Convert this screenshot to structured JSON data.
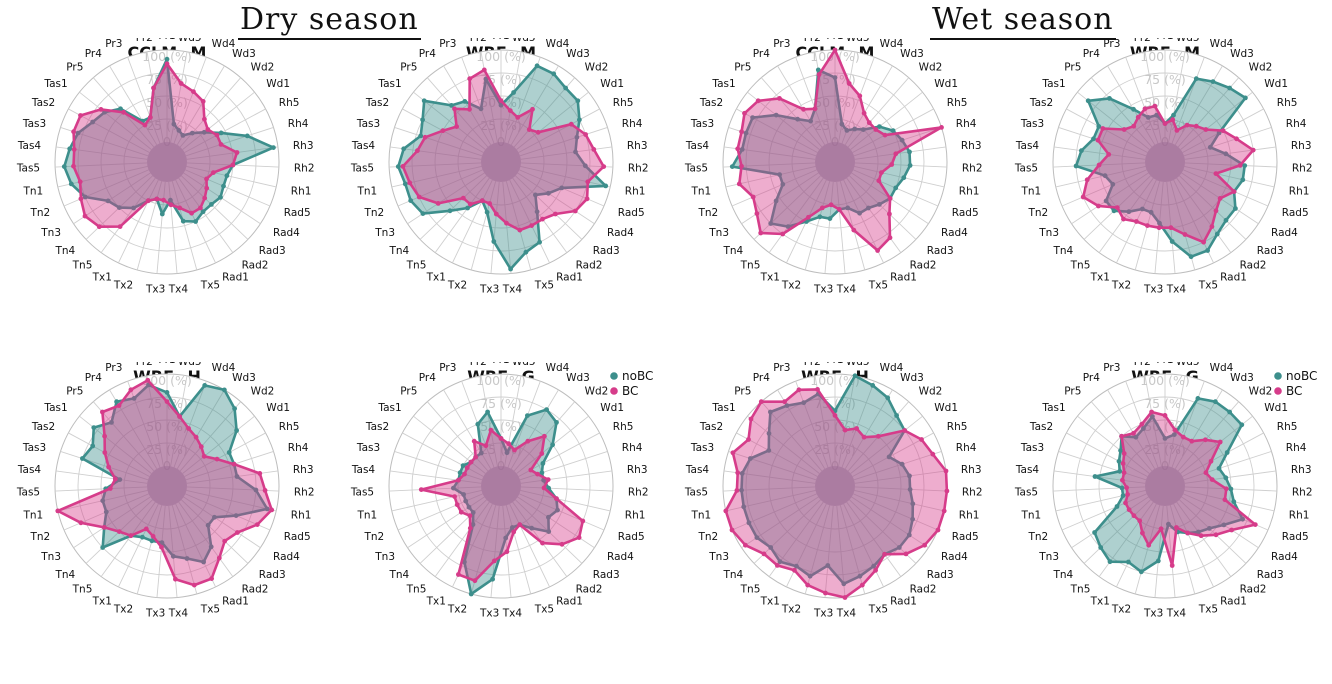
{
  "seasons": {
    "dry": "Dry season",
    "wet": "Wet season"
  },
  "colors": {
    "noBC": "#3d8f8c",
    "BC": "#d63c8a"
  },
  "chart_data": [
    {
      "type": "radar",
      "season": "Dry season",
      "title": "CCLM−M",
      "axes": [
        "Pr1",
        "Wd5",
        "Wd4",
        "Wd3",
        "Wd2",
        "Wd1",
        "Rh5",
        "Rh4",
        "Rh3",
        "Rh2",
        "Rh1",
        "Rad5",
        "Rad4",
        "Rad3",
        "Rad2",
        "Rad1",
        "Tx5",
        "Tx4",
        "Tx3",
        "Tx2",
        "Tx1",
        "Tn5",
        "Tn4",
        "Tn3",
        "Tn2",
        "Tn1",
        "Tas5",
        "Tas4",
        "Tas3",
        "Tas2",
        "Tas1",
        "Pr5",
        "Pr4",
        "Pr3",
        "Pr2"
      ],
      "radial_ticks": [
        "100 (%)",
        "75 (%)",
        "50 (%)",
        "25 (%)",
        "0"
      ],
      "rlim": [
        0,
        100
      ],
      "grid": true,
      "legend": [],
      "series": [
        {
          "key": "noBC",
          "values": [
            90,
            20,
            15,
            12,
            20,
            30,
            45,
            70,
            95,
            50,
            45,
            45,
            48,
            45,
            45,
            50,
            45,
            20,
            35,
            20,
            25,
            40,
            50,
            55,
            75,
            85,
            90,
            85,
            80,
            70,
            65,
            55,
            30,
            30,
            60
          ]
        },
        {
          "key": "BC",
          "values": [
            85,
            65,
            60,
            55,
            40,
            35,
            40,
            40,
            55,
            50,
            30,
            25,
            30,
            35,
            40,
            40,
            30,
            25,
            20,
            20,
            25,
            65,
            80,
            85,
            80,
            75,
            80,
            80,
            85,
            85,
            70,
            50,
            25,
            30,
            60
          ]
        }
      ]
    },
    {
      "type": "radar",
      "season": "Dry season",
      "title": "WRF−M",
      "axes": [
        "Pr1",
        "Wd5",
        "Wd4",
        "Wd3",
        "Wd2",
        "Wd1",
        "Rh5",
        "Rh4",
        "Rh3",
        "Rh2",
        "Rh1",
        "Rad5",
        "Rad4",
        "Rad3",
        "Rad2",
        "Rad1",
        "Tx5",
        "Tx4",
        "Tx3",
        "Tx2",
        "Tx1",
        "Tn5",
        "Tn4",
        "Tn3",
        "Tn2",
        "Tn1",
        "Tas5",
        "Tas4",
        "Tas3",
        "Tas2",
        "Tas1",
        "Pr5",
        "Pr4",
        "Pr3",
        "Pr2"
      ],
      "radial_ticks": [
        "100 (%)",
        "75 (%)",
        "50 (%)",
        "25 (%)",
        "0"
      ],
      "rlim": [
        0,
        100
      ],
      "grid": true,
      "legend": [],
      "series": [
        {
          "key": "noBC",
          "values": [
            40,
            55,
            90,
            90,
            85,
            85,
            75,
            65,
            60,
            70,
            95,
            50,
            40,
            30,
            45,
            75,
            80,
            95,
            65,
            35,
            25,
            40,
            55,
            80,
            85,
            85,
            90,
            85,
            70,
            75,
            85,
            60,
            55,
            40,
            70
          ]
        },
        {
          "key": "BC",
          "values": [
            45,
            35,
            30,
            45,
            25,
            30,
            65,
            75,
            80,
            90,
            75,
            80,
            75,
            60,
            55,
            55,
            55,
            45,
            35,
            25,
            25,
            35,
            35,
            60,
            75,
            80,
            85,
            70,
            65,
            50,
            40,
            55,
            45,
            75,
            80
          ]
        }
      ]
    },
    {
      "type": "radar",
      "season": "Wet season",
      "title": "CCLM−M",
      "axes": [
        "Pr1",
        "Wd5",
        "Wd4",
        "Wd3",
        "Wd2",
        "Wd1",
        "Rh5",
        "Rh4",
        "Rh3",
        "Rh2",
        "Rh1",
        "Rad5",
        "Rad4",
        "Rad3",
        "Rad2",
        "Rad1",
        "Tx5",
        "Tx4",
        "Tx3",
        "Tx2",
        "Tx1",
        "Tn5",
        "Tn4",
        "Tn3",
        "Tn2",
        "Tn1",
        "Tas5",
        "Tas4",
        "Tas3",
        "Tas2",
        "Tas1",
        "Pr5",
        "Pr4",
        "Pr3",
        "Pr2"
      ],
      "radial_ticks": [
        "100 (%)",
        "75 (%)",
        "50 (%)",
        "25 (%)",
        "0"
      ],
      "rlim": [
        0,
        100
      ],
      "grid": true,
      "legend": [],
      "series": [
        {
          "key": "noBC",
          "values": [
            70,
            20,
            15,
            20,
            25,
            40,
            50,
            55,
            60,
            60,
            55,
            50,
            50,
            45,
            40,
            40,
            30,
            30,
            40,
            40,
            50,
            65,
            75,
            55,
            40,
            40,
            90,
            80,
            80,
            80,
            60,
            40,
            30,
            40,
            80
          ]
        },
        {
          "key": "BC",
          "values": [
            100,
            65,
            55,
            40,
            35,
            35,
            40,
            100,
            45,
            40,
            30,
            30,
            50,
            60,
            80,
            85,
            55,
            30,
            25,
            30,
            45,
            75,
            90,
            80,
            75,
            85,
            80,
            85,
            85,
            90,
            85,
            70,
            45,
            40,
            75
          ]
        }
      ]
    },
    {
      "type": "radar",
      "season": "Wet season",
      "title": "WRF−M",
      "axes": [
        "Pr1",
        "Wd5",
        "Wd4",
        "Wd3",
        "Wd2",
        "Wd1",
        "Rh5",
        "Rh4",
        "Rh3",
        "Rh2",
        "Rh1",
        "Rad5",
        "Rad4",
        "Rad3",
        "Rad2",
        "Rad1",
        "Tx5",
        "Tx4",
        "Tx3",
        "Tx2",
        "Tx1",
        "Tn5",
        "Tn4",
        "Tn3",
        "Tn2",
        "Tn1",
        "Tas5",
        "Tas4",
        "Tas3",
        "Tas2",
        "Tas1",
        "Pr5",
        "Pr4",
        "Pr3",
        "Pr2"
      ],
      "radial_ticks": [
        "100 (%)",
        "75 (%)",
        "50 (%)",
        "25 (%)",
        "0"
      ],
      "rlim": [
        0,
        100
      ],
      "grid": true,
      "legend": [],
      "series": [
        {
          "key": "noBC",
          "values": [
            20,
            30,
            75,
            80,
            85,
            90,
            45,
            30,
            45,
            65,
            65,
            60,
            70,
            70,
            75,
            85,
            85,
            65,
            45,
            35,
            35,
            45,
            55,
            55,
            40,
            45,
            75,
            70,
            60,
            60,
            85,
            70,
            45,
            30,
            30
          ]
        },
        {
          "key": "BC",
          "values": [
            20,
            25,
            15,
            25,
            30,
            35,
            50,
            60,
            75,
            60,
            35,
            60,
            50,
            55,
            65,
            75,
            60,
            50,
            50,
            50,
            50,
            55,
            50,
            65,
            75,
            65,
            50,
            40,
            55,
            55,
            35,
            30,
            35,
            40,
            40
          ]
        }
      ]
    },
    {
      "type": "radar",
      "season": "Dry season",
      "title": "WRF−H",
      "axes": [
        "Pr1",
        "Wd5",
        "Wd4",
        "Wd3",
        "Wd2",
        "Wd1",
        "Rh5",
        "Rh4",
        "Rh3",
        "Rh2",
        "Rh1",
        "Rad5",
        "Rad4",
        "Rad3",
        "Rad2",
        "Rad1",
        "Tx5",
        "Tx4",
        "Tx3",
        "Tx2",
        "Tx1",
        "Tn5",
        "Tn4",
        "Tn3",
        "Tn2",
        "Tn1",
        "Tas5",
        "Tas4",
        "Tas3",
        "Tas2",
        "Tas1",
        "Pr5",
        "Pr4",
        "Pr3",
        "Pr2"
      ],
      "radial_ticks": [
        "100 (%)",
        "75 (%)",
        "50 (%)",
        "25 (%)",
        "0"
      ],
      "rlim": [
        0,
        100
      ],
      "grid": true,
      "legend": [],
      "series": [
        {
          "key": "noBC",
          "values": [
            80,
            55,
            95,
            100,
            90,
            75,
            55,
            55,
            55,
            75,
            90,
            60,
            40,
            40,
            60,
            70,
            60,
            55,
            40,
            40,
            40,
            45,
            75,
            60,
            50,
            50,
            45,
            30,
            75,
            70,
            80,
            70,
            85,
            80,
            90
          ]
        },
        {
          "key": "BC",
          "values": [
            70,
            55,
            45,
            40,
            35,
            30,
            40,
            55,
            80,
            85,
            95,
            85,
            70,
            65,
            75,
            90,
            90,
            80,
            45,
            35,
            30,
            45,
            50,
            60,
            80,
            100,
            40,
            35,
            45,
            55,
            65,
            85,
            80,
            90,
            95
          ]
        }
      ]
    },
    {
      "type": "radar",
      "season": "Dry season",
      "title": "WRF−G",
      "axes": [
        "Pr1",
        "Wd5",
        "Wd4",
        "Wd3",
        "Wd2",
        "Wd1",
        "Rh5",
        "Rh4",
        "Rh3",
        "Rh2",
        "Rh1",
        "Rad5",
        "Rad4",
        "Rad3",
        "Rad2",
        "Rad1",
        "Tx5",
        "Tx4",
        "Tx3",
        "Tx2",
        "Tx1",
        "Tn5",
        "Tn4",
        "Tn3",
        "Tn2",
        "Tn1",
        "Tas5",
        "Tas4",
        "Tas3",
        "Tas2",
        "Tas1",
        "Pr5",
        "Pr4",
        "Pr3",
        "Pr2"
      ],
      "radial_ticks": [
        "100 (%)",
        "75 (%)",
        "50 (%)",
        "25 (%)",
        "0"
      ],
      "rlim": [
        0,
        100
      ],
      "grid": true,
      "legend": [
        "noBC",
        "BC"
      ],
      "series": [
        {
          "key": "noBC",
          "values": [
            30,
            15,
            60,
            75,
            70,
            50,
            30,
            25,
            25,
            30,
            40,
            45,
            40,
            50,
            35,
            25,
            25,
            35,
            80,
            100,
            70,
            30,
            20,
            20,
            20,
            20,
            30,
            25,
            25,
            25,
            20,
            20,
            20,
            50,
            60
          ]
        },
        {
          "key": "BC",
          "values": [
            30,
            25,
            20,
            35,
            50,
            35,
            15,
            20,
            30,
            25,
            40,
            75,
            80,
            70,
            55,
            25,
            30,
            50,
            60,
            85,
            85,
            35,
            25,
            30,
            30,
            30,
            65,
            25,
            20,
            20,
            20,
            20,
            35,
            25,
            40
          ]
        }
      ]
    },
    {
      "type": "radar",
      "season": "Wet season",
      "title": "WRF−H",
      "axes": [
        "Pr1",
        "Wd5",
        "Wd4",
        "Wd3",
        "Wd2",
        "Wd1",
        "Rh5",
        "Rh4",
        "Rh3",
        "Rh2",
        "Rh1",
        "Rad5",
        "Rad4",
        "Rad3",
        "Rad2",
        "Rad1",
        "Tx5",
        "Tx4",
        "Tx3",
        "Tx2",
        "Tx1",
        "Tn5",
        "Tn4",
        "Tn3",
        "Tn2",
        "Tn1",
        "Tas5",
        "Tas4",
        "Tas3",
        "Tas2",
        "Tas1",
        "Pr5",
        "Pr4",
        "Pr3",
        "Pr2"
      ],
      "radial_ticks": [
        "100 (%)",
        "75 (%)",
        "50 (%)",
        "25 (%)",
        "0"
      ],
      "rlim": [
        0,
        100
      ],
      "grid": true,
      "legend": [],
      "series": [
        {
          "key": "noBC",
          "values": [
            60,
            100,
            95,
            90,
            80,
            75,
            45,
            55,
            60,
            60,
            65,
            70,
            75,
            75,
            70,
            75,
            80,
            85,
            65,
            80,
            75,
            80,
            75,
            80,
            80,
            80,
            80,
            80,
            75,
            60,
            70,
            85,
            80,
            75,
            80
          ]
        },
        {
          "key": "BC",
          "values": [
            55,
            40,
            45,
            40,
            50,
            75,
            85,
            90,
            100,
            100,
            100,
            100,
            95,
            85,
            70,
            80,
            90,
            100,
            95,
            90,
            80,
            85,
            85,
            95,
            100,
            100,
            85,
            85,
            95,
            85,
            95,
            100,
            85,
            90,
            85
          ]
        }
      ]
    },
    {
      "type": "radar",
      "season": "Wet season",
      "title": "WRF−G",
      "axes": [
        "Pr1",
        "Wd5",
        "Wd4",
        "Wd3",
        "Wd2",
        "Wd1",
        "Rh5",
        "Rh4",
        "Rh3",
        "Rh2",
        "Rh1",
        "Rad5",
        "Rad4",
        "Rad3",
        "Rad2",
        "Rad1",
        "Tx5",
        "Tx4",
        "Tx3",
        "Tx2",
        "Tx1",
        "Tn5",
        "Tn4",
        "Tn3",
        "Tn2",
        "Tn1",
        "Tas5",
        "Tas4",
        "Tas3",
        "Tas2",
        "Tas1",
        "Pr5",
        "Pr4",
        "Pr3",
        "Pr2"
      ],
      "radial_ticks": [
        "100 (%)",
        "75 (%)",
        "50 (%)",
        "25 (%)",
        "0"
      ],
      "rlim": [
        0,
        100
      ],
      "grid": true,
      "legend": [
        "noBC",
        "BC"
      ],
      "series": [
        {
          "key": "noBC",
          "values": [
            30,
            35,
            80,
            85,
            85,
            85,
            55,
            40,
            45,
            50,
            55,
            70,
            55,
            45,
            40,
            35,
            30,
            20,
            60,
            75,
            70,
            80,
            75,
            70,
            35,
            25,
            25,
            55,
            30,
            35,
            40,
            50,
            40,
            45,
            55
          ]
        },
        {
          "key": "BC",
          "values": [
            55,
            40,
            35,
            35,
            45,
            55,
            35,
            25,
            30,
            45,
            45,
            85,
            65,
            55,
            45,
            35,
            25,
            65,
            25,
            45,
            35,
            25,
            25,
            25,
            25,
            20,
            20,
            25,
            25,
            30,
            35,
            50,
            45,
            50,
            60
          ]
        }
      ]
    }
  ]
}
